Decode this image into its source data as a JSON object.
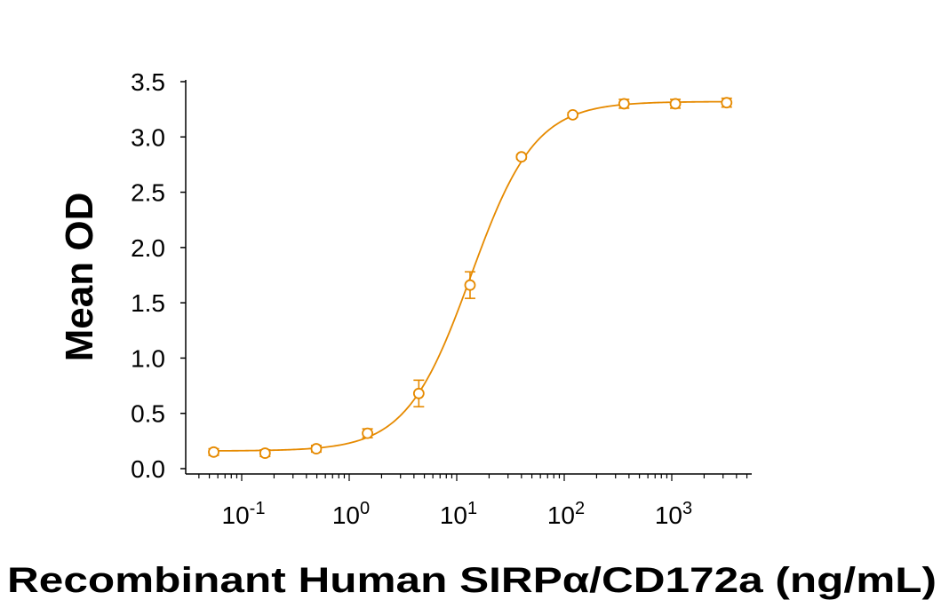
{
  "chart_data": {
    "type": "scatter",
    "x_scale": "log",
    "xlabel": "Recombinant Human SIRPα/CD172a (ng/mL)",
    "ylabel": "Mean OD",
    "xlim": [
      0.04,
      5000
    ],
    "ylim": [
      0,
      3.5
    ],
    "grid": false,
    "color": "#e68a00",
    "y_ticks": [
      "0.0",
      "0.5",
      "1.0",
      "1.5",
      "2.0",
      "2.5",
      "3.0",
      "3.5"
    ],
    "x_ticks": [
      {
        "base": "10",
        "exp": "-1"
      },
      {
        "base": "10",
        "exp": "0"
      },
      {
        "base": "10",
        "exp": "1"
      },
      {
        "base": "10",
        "exp": "2"
      },
      {
        "base": "10",
        "exp": "3"
      }
    ],
    "series": [
      {
        "x": [
          0.0549,
          0.165,
          0.494,
          1.48,
          4.44,
          13.3,
          40.0,
          120,
          360,
          1080,
          3240
        ],
        "y": [
          0.15,
          0.14,
          0.18,
          0.32,
          0.68,
          1.66,
          2.82,
          3.2,
          3.3,
          3.3,
          3.31
        ],
        "err": [
          0.03,
          0.03,
          0.03,
          0.04,
          0.12,
          0.12,
          0.02,
          0.02,
          0.04,
          0.04,
          0.04
        ]
      }
    ],
    "fit": {
      "model": "4PL",
      "bottom": 0.16,
      "top": 3.32,
      "ec50": 13.5,
      "hill": 1.45
    }
  }
}
